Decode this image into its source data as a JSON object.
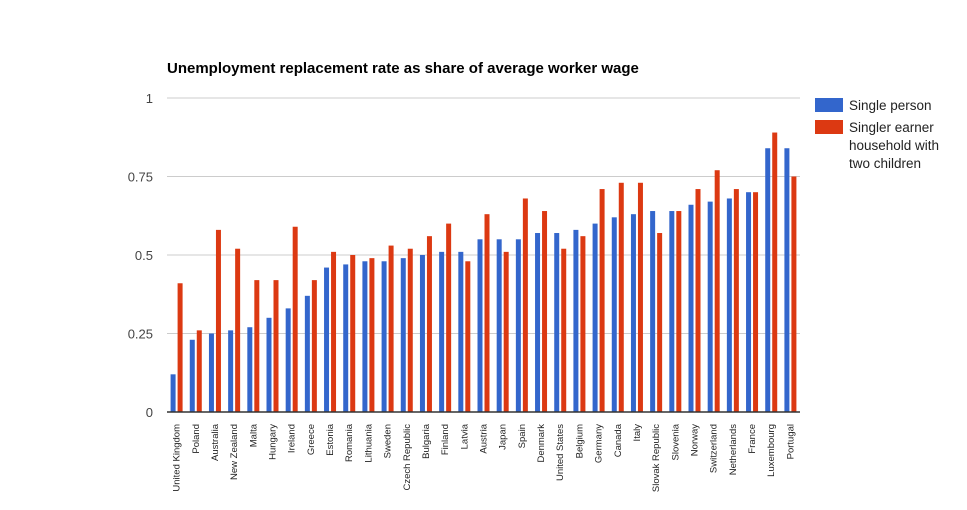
{
  "chart_data": {
    "type": "bar",
    "title": "Unemployment replacement rate as share of average worker wage",
    "xlabel": "",
    "ylabel": "",
    "ylim": [
      0,
      1
    ],
    "yticks": [
      0,
      0.25,
      0.5,
      0.75,
      1
    ],
    "ytick_labels": [
      "0",
      "0.25",
      "0.5",
      "0.75",
      "1"
    ],
    "grid": true,
    "legend_position": "right",
    "categories": [
      "United Kingdom",
      "Poland",
      "Australia",
      "New Zealand",
      "Malta",
      "Hungary",
      "Ireland",
      "Greece",
      "Estonia",
      "Romania",
      "Lithuania",
      "Sweden",
      "Czech Republic",
      "Bulgaria",
      "Finland",
      "Latvia",
      "Austria",
      "Japan",
      "Spain",
      "Denmark",
      "United States",
      "Belgium",
      "Germany",
      "Canada",
      "Italy",
      "Slovak Republic",
      "Slovenia",
      "Norway",
      "Switzerland",
      "Netherlands",
      "France",
      "Luxembourg",
      "Portugal"
    ],
    "series": [
      {
        "name": "Single person",
        "color": "#3366cc",
        "values": [
          0.12,
          0.23,
          0.25,
          0.26,
          0.27,
          0.3,
          0.33,
          0.37,
          0.46,
          0.47,
          0.48,
          0.48,
          0.49,
          0.5,
          0.51,
          0.51,
          0.55,
          0.55,
          0.55,
          0.57,
          0.57,
          0.58,
          0.6,
          0.62,
          0.63,
          0.64,
          0.64,
          0.66,
          0.67,
          0.68,
          0.7,
          0.84,
          0.84
        ]
      },
      {
        "name": "Singler earner household with two children",
        "color": "#dc3912",
        "values": [
          0.41,
          0.26,
          0.58,
          0.52,
          0.42,
          0.42,
          0.59,
          0.42,
          0.51,
          0.5,
          0.49,
          0.53,
          0.52,
          0.56,
          0.6,
          0.48,
          0.63,
          0.51,
          0.68,
          0.64,
          0.52,
          0.56,
          0.71,
          0.73,
          0.73,
          0.57,
          0.64,
          0.71,
          0.77,
          0.71,
          0.7,
          0.89,
          0.75
        ]
      }
    ],
    "legend": [
      {
        "label_lines": [
          "Single person"
        ],
        "color": "#3366cc"
      },
      {
        "label_lines": [
          "Singler earner",
          "household with",
          "two children"
        ],
        "color": "#dc3912"
      }
    ]
  }
}
